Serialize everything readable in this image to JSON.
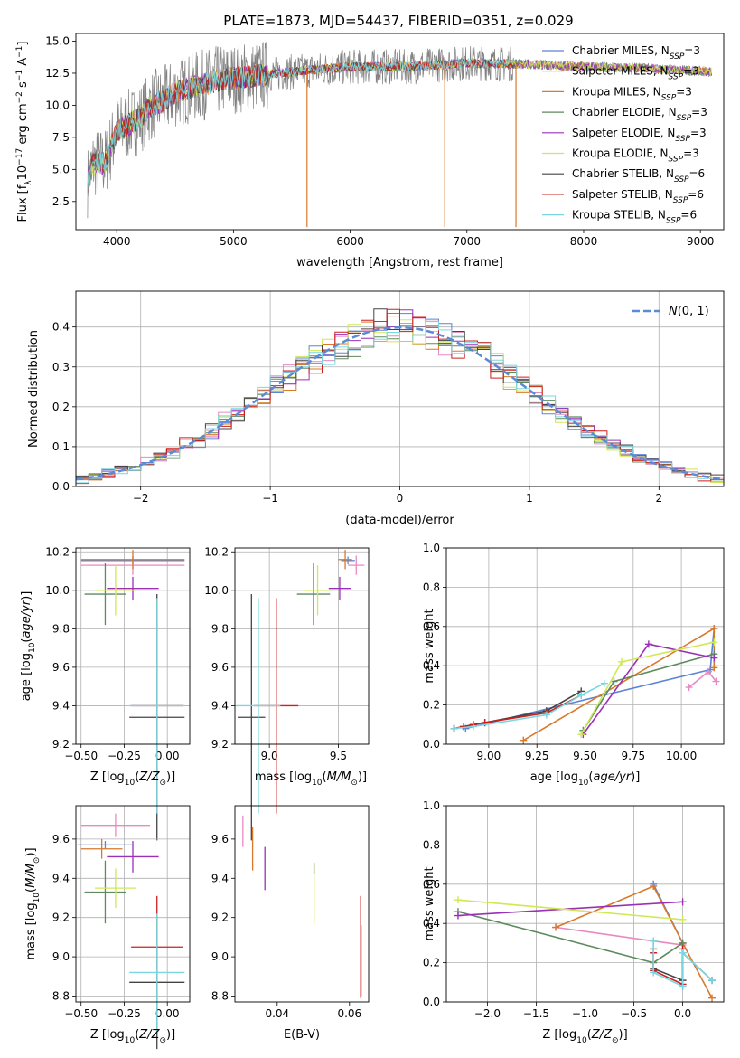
{
  "figure": {
    "title": "PLATE=1873, MJD=54437, FIBERID=0351, z=0.029"
  },
  "colors": {
    "Chabrier MILES": "#5b84d6",
    "Salpeter MILES": "#e88ac1",
    "Kroupa MILES": "#d9792a",
    "Chabrier ELODIE": "#5e8a5e",
    "Salpeter ELODIE": "#9b30b8",
    "Kroupa ELODIE": "#cfe854",
    "Chabrier STELIB": "#444444",
    "Salpeter STELIB": "#cc1f1f",
    "Kroupa STELIB": "#7ad6e0",
    "normal": "#5b8ad6",
    "grid": "#b0b0b0",
    "spectrum_gray": "#808080"
  },
  "chart_data": [
    {
      "id": "spectrum",
      "type": "line",
      "title": "PLATE=1873, MJD=54437, FIBERID=0351, z=0.029",
      "xlabel": "wavelength [Angstrom, rest frame]",
      "ylabel": "Flux [f_λ 10^-17 erg cm^-2 s^-1 A^-1]",
      "xlim": [
        3650,
        9200
      ],
      "ylim": [
        0.3,
        15.6
      ],
      "xticks": [
        "4000",
        "5000",
        "6000",
        "7000",
        "8000",
        "9000"
      ],
      "yticks": [
        "2.5",
        "5.0",
        "7.5",
        "10.0",
        "12.5",
        "15.0"
      ],
      "grid": false,
      "legend_position": "right",
      "legend": [
        {
          "name": "Chabrier MILES",
          "nssp": "3"
        },
        {
          "name": "Salpeter MILES",
          "nssp": "3"
        },
        {
          "name": "Kroupa MILES",
          "nssp": "3"
        },
        {
          "name": "Chabrier ELODIE",
          "nssp": "3"
        },
        {
          "name": "Salpeter ELODIE",
          "nssp": "3"
        },
        {
          "name": "Kroupa ELODIE",
          "nssp": "3"
        },
        {
          "name": "Chabrier STELIB",
          "nssp": "6"
        },
        {
          "name": "Salpeter STELIB",
          "nssp": "6"
        },
        {
          "name": "Kroupa STELIB",
          "nssp": "6"
        }
      ],
      "model_trend": {
        "x": [
          3750,
          3800,
          3900,
          4000,
          4100,
          4200,
          4300,
          4400,
          4500,
          4700,
          4900,
          5200,
          5500,
          6000,
          6500,
          7000,
          7500,
          8000,
          8500,
          9100
        ],
        "y": [
          4.0,
          5.5,
          5.5,
          8.0,
          8.5,
          9.0,
          10.0,
          10.3,
          11.0,
          11.5,
          12.0,
          12.3,
          12.6,
          13.0,
          13.0,
          13.3,
          13.2,
          13.0,
          12.9,
          12.6
        ]
      },
      "stelib_range": [
        3750,
        7400
      ],
      "absorption_drops": [
        {
          "x": 5630,
          "y": 0.5
        },
        {
          "x": 6810,
          "y": 0.5
        },
        {
          "x": 7420,
          "y": 0.5
        }
      ]
    },
    {
      "id": "residuals",
      "type": "bar",
      "xlabel": "(data-model)/error",
      "ylabel": "Normed distribution",
      "xlim": [
        -2.5,
        2.5
      ],
      "ylim": [
        0,
        0.49
      ],
      "xticks": [
        "−2",
        "−1",
        "0",
        "1",
        "2"
      ],
      "yticks": [
        "0.0",
        "0.1",
        "0.2",
        "0.3",
        "0.4"
      ],
      "grid": true,
      "legend_position": "top-right",
      "bin_width": 0.1,
      "normal_label": "N(0, 1)"
    },
    {
      "id": "age-vs-Z",
      "type": "scatter",
      "xlabel": "Z [log10(Z/Z⊙)]",
      "ylabel": "age  [log10(age/yr)]",
      "xlim": [
        -0.53,
        0.13
      ],
      "ylim": [
        9.2,
        10.22
      ],
      "xticks": [
        "−0.50",
        "−0.25",
        "0.00"
      ],
      "yticks": [
        "9.2",
        "9.4",
        "9.6",
        "9.8",
        "10.0",
        "10.2"
      ],
      "grid": true,
      "points": [
        {
          "model": "Chabrier MILES",
          "x": -0.2,
          "y": 10.155,
          "xerr": 0.3,
          "yerr": 0.02
        },
        {
          "model": "Salpeter MILES",
          "x": -0.2,
          "y": 10.13,
          "xerr": 0.3,
          "yerr": 0.05
        },
        {
          "model": "Kroupa MILES",
          "x": -0.2,
          "y": 10.16,
          "xerr": 0.3,
          "yerr": 0.05
        },
        {
          "model": "Chabrier ELODIE",
          "x": -0.36,
          "y": 9.98,
          "xerr": 0.12,
          "yerr": 0.16
        },
        {
          "model": "Salpeter ELODIE",
          "x": -0.2,
          "y": 10.01,
          "xerr": 0.15,
          "yerr": 0.06
        },
        {
          "model": "Kroupa ELODIE",
          "x": -0.3,
          "y": 10.0,
          "xerr": 0.12,
          "yerr": 0.13
        },
        {
          "model": "Chabrier STELIB",
          "x": -0.06,
          "y": 9.34,
          "xerr": 0.16,
          "yerr": 0.64
        },
        {
          "model": "Salpeter STELIB",
          "x": -0.06,
          "y": 9.4,
          "xerr": 0.15,
          "yerr": 0.56
        },
        {
          "model": "Kroupa STELIB",
          "x": -0.06,
          "y": 9.4,
          "xerr": 0.16,
          "yerr": 0.56
        }
      ]
    },
    {
      "id": "age-vs-mass",
      "type": "scatter",
      "xlabel": "mass [log10(M/M⊙)]",
      "xlim": [
        8.75,
        9.72
      ],
      "ylim": [
        9.2,
        10.22
      ],
      "xticks": [
        "9.0",
        "9.5"
      ],
      "yticks": [
        "9.2",
        "9.4",
        "9.6",
        "9.8",
        "10.0",
        "10.2"
      ],
      "grid": true,
      "points": [
        {
          "model": "Chabrier MILES",
          "x": 9.57,
          "y": 10.155,
          "xerr": 0.05,
          "yerr": 0.02
        },
        {
          "model": "Salpeter MILES",
          "x": 9.63,
          "y": 10.13,
          "xerr": 0.06,
          "yerr": 0.05
        },
        {
          "model": "Kroupa MILES",
          "x": 9.55,
          "y": 10.16,
          "xerr": 0.05,
          "yerr": 0.05
        },
        {
          "model": "Chabrier ELODIE",
          "x": 9.32,
          "y": 9.98,
          "xerr": 0.12,
          "yerr": 0.16
        },
        {
          "model": "Salpeter ELODIE",
          "x": 9.51,
          "y": 10.01,
          "xerr": 0.08,
          "yerr": 0.06
        },
        {
          "model": "Kroupa ELODIE",
          "x": 9.35,
          "y": 10.0,
          "xerr": 0.1,
          "yerr": 0.13
        },
        {
          "model": "Chabrier STELIB",
          "x": 8.87,
          "y": 9.34,
          "xerr": 0.1,
          "yerr": 0.64
        },
        {
          "model": "Salpeter STELIB",
          "x": 9.05,
          "y": 9.4,
          "xerr": 0.16,
          "yerr": 0.56
        },
        {
          "model": "Kroupa STELIB",
          "x": 8.92,
          "y": 9.4,
          "xerr": 0.16,
          "yerr": 0.56
        }
      ]
    },
    {
      "id": "massweight-vs-age",
      "type": "line",
      "xlabel": "age  [log10(age/yr)]",
      "ylabel": "mass weight",
      "xlim": [
        8.78,
        10.22
      ],
      "ylim": [
        0,
        1.0
      ],
      "xticks": [
        "9.00",
        "9.25",
        "9.50",
        "9.75",
        "10.00"
      ],
      "yticks": [
        "0.0",
        "0.2",
        "0.4",
        "0.6",
        "0.8",
        "1.0"
      ],
      "grid": true,
      "series": [
        {
          "model": "Chabrier MILES",
          "x": [
            8.88,
            10.15,
            10.17
          ],
          "y": [
            0.08,
            0.38,
            0.59
          ]
        },
        {
          "model": "Salpeter MILES",
          "x": [
            10.04,
            10.14,
            10.18
          ],
          "y": [
            0.29,
            0.37,
            0.32
          ]
        },
        {
          "model": "Kroupa MILES",
          "x": [
            9.18,
            10.17,
            10.17
          ],
          "y": [
            0.02,
            0.59,
            0.39
          ]
        },
        {
          "model": "Chabrier ELODIE",
          "x": [
            9.49,
            9.65,
            10.17
          ],
          "y": [
            0.07,
            0.32,
            0.46
          ]
        },
        {
          "model": "Salpeter ELODIE",
          "x": [
            9.49,
            9.83,
            10.17
          ],
          "y": [
            0.05,
            0.51,
            0.44
          ]
        },
        {
          "model": "Kroupa ELODIE",
          "x": [
            9.48,
            9.69,
            10.17
          ],
          "y": [
            0.05,
            0.42,
            0.52
          ]
        },
        {
          "model": "Chabrier STELIB",
          "x": [
            8.82,
            8.87,
            8.92,
            8.98,
            9.3,
            9.48
          ],
          "y": [
            0.08,
            0.09,
            0.1,
            0.11,
            0.17,
            0.27
          ]
        },
        {
          "model": "Salpeter STELIB",
          "x": [
            8.82,
            8.87,
            8.92,
            8.98,
            9.3,
            9.48
          ],
          "y": [
            0.08,
            0.09,
            0.1,
            0.11,
            0.16,
            0.25
          ]
        },
        {
          "model": "Kroupa STELIB",
          "x": [
            8.82,
            8.92,
            9.3,
            9.48,
            9.6
          ],
          "y": [
            0.08,
            0.09,
            0.15,
            0.25,
            0.31
          ]
        }
      ]
    },
    {
      "id": "mass-vs-Z",
      "type": "scatter",
      "xlabel": "Z [log10(Z/Z⊙)]",
      "ylabel": "mass [log10(M/M⊙)]",
      "xlim": [
        -0.53,
        0.13
      ],
      "ylim": [
        8.77,
        9.77
      ],
      "xticks": [
        "−0.50",
        "−0.25",
        "0.00"
      ],
      "yticks": [
        "8.8",
        "9.0",
        "9.2",
        "9.4",
        "9.6"
      ],
      "grid": true,
      "points": [
        {
          "model": "Chabrier MILES",
          "x": -0.36,
          "y": 9.57,
          "xerr": 0.16,
          "yerr": 0.02
        },
        {
          "model": "Salpeter MILES",
          "x": -0.3,
          "y": 9.67,
          "xerr": 0.2,
          "yerr": 0.06
        },
        {
          "model": "Kroupa MILES",
          "x": -0.38,
          "y": 9.55,
          "xerr": 0.12,
          "yerr": 0.05
        },
        {
          "model": "Chabrier ELODIE",
          "x": -0.36,
          "y": 9.33,
          "xerr": 0.12,
          "yerr": 0.16
        },
        {
          "model": "Salpeter ELODIE",
          "x": -0.2,
          "y": 9.51,
          "xerr": 0.15,
          "yerr": 0.08
        },
        {
          "model": "Kroupa ELODIE",
          "x": -0.3,
          "y": 9.35,
          "xerr": 0.12,
          "yerr": 0.1
        },
        {
          "model": "Chabrier STELIB",
          "x": -0.06,
          "y": 8.87,
          "xerr": 0.16,
          "yerr": 0.34
        },
        {
          "model": "Salpeter STELIB",
          "x": -0.06,
          "y": 9.05,
          "xerr": 0.15,
          "yerr": 0.26
        },
        {
          "model": "Kroupa STELIB",
          "x": -0.06,
          "y": 8.92,
          "xerr": 0.16,
          "yerr": 0.3
        }
      ]
    },
    {
      "id": "mass-vs-ebv",
      "type": "scatter",
      "xlabel": "E(B-V)",
      "xlim": [
        0.0283,
        0.0653
      ],
      "ylim": [
        8.77,
        9.77
      ],
      "xticks": [
        "0.04",
        "0.06"
      ],
      "yticks": [
        "8.8",
        "9.0",
        "9.2",
        "9.4",
        "9.6"
      ],
      "grid": false,
      "points": [
        {
          "model": "Salpeter MILES",
          "x": 0.0305,
          "y": 9.64,
          "yerr": 0.08
        },
        {
          "model": "Kroupa MILES",
          "x": 0.0332,
          "y": 9.55,
          "yerr": 0.11
        },
        {
          "model": "Salpeter ELODIE",
          "x": 0.0366,
          "y": 9.45,
          "yerr": 0.11
        },
        {
          "model": "Kroupa ELODIE",
          "x": 0.0502,
          "y": 9.32,
          "yerr": 0.15
        },
        {
          "model": "Chabrier ELODIE",
          "x": 0.0502,
          "y": 9.45,
          "yerr": 0.03
        },
        {
          "model": "Salpeter STELIB",
          "x": 0.0631,
          "y": 9.05,
          "yerr": 0.26
        },
        {
          "model": "Kroupa STELIB",
          "x": 0.0633,
          "y": 8.98,
          "yerr": 0.18
        }
      ]
    },
    {
      "id": "massweight-vs-Z",
      "type": "line",
      "xlabel": "Z [log10(Z/Z⊙)]",
      "ylabel": "mass weight",
      "xlim": [
        -2.42,
        0.42
      ],
      "ylim": [
        0,
        1.0
      ],
      "xticks": [
        "−2.0",
        "−1.5",
        "−1.0",
        "−0.5",
        "0.0"
      ],
      "yticks": [
        "0.0",
        "0.2",
        "0.4",
        "0.6",
        "0.8",
        "1.0"
      ],
      "grid": true,
      "series": [
        {
          "model": "Chabrier MILES",
          "x": [
            -0.3,
            0.0,
            0.0
          ],
          "y": [
            0.6,
            0.3,
            0.08
          ]
        },
        {
          "model": "Salpeter MILES",
          "x": [
            -1.3,
            -0.3,
            0.0
          ],
          "y": [
            0.38,
            0.31,
            0.29
          ]
        },
        {
          "model": "Kroupa MILES",
          "x": [
            -1.3,
            -0.3,
            0.0,
            0.3
          ],
          "y": [
            0.38,
            0.59,
            0.3,
            0.02
          ]
        },
        {
          "model": "Chabrier ELODIE",
          "x": [
            -2.3,
            -0.3,
            0.0
          ],
          "y": [
            0.46,
            0.2,
            0.3
          ]
        },
        {
          "model": "Salpeter ELODIE",
          "x": [
            -2.3,
            0.0
          ],
          "y": [
            0.44,
            0.51
          ]
        },
        {
          "model": "Kroupa ELODIE",
          "x": [
            -2.3,
            0.0
          ],
          "y": [
            0.52,
            0.42
          ]
        },
        {
          "model": "Chabrier STELIB",
          "x": [
            -0.3,
            -0.3,
            0.0,
            0.0,
            0.3
          ],
          "y": [
            0.27,
            0.17,
            0.11,
            0.25,
            0.11
          ]
        },
        {
          "model": "Salpeter STELIB",
          "x": [
            -0.3,
            -0.3,
            0.0,
            0.0
          ],
          "y": [
            0.25,
            0.16,
            0.09,
            0.27
          ]
        },
        {
          "model": "Kroupa STELIB",
          "x": [
            -0.3,
            -0.3,
            0.0,
            0.0,
            0.3
          ],
          "y": [
            0.31,
            0.15,
            0.08,
            0.25,
            0.11
          ]
        }
      ]
    }
  ]
}
